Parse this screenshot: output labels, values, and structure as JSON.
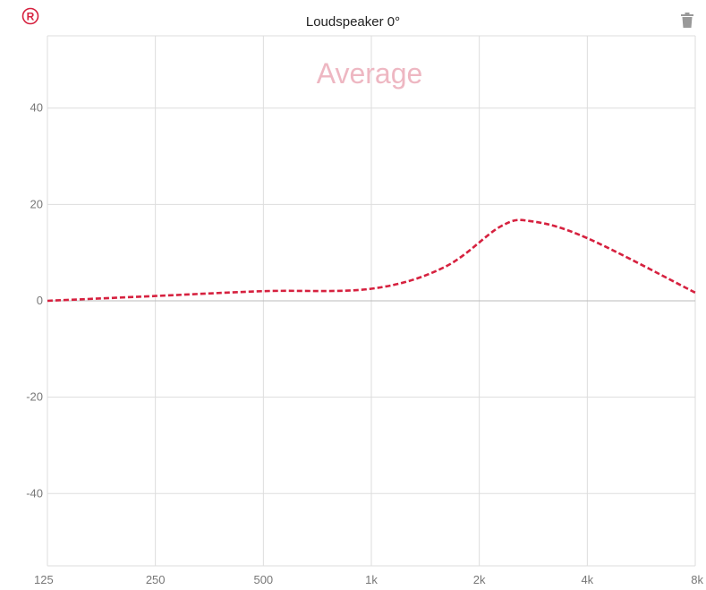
{
  "header": {
    "title": "Loudspeaker 0°",
    "left_icon": "registered-icon",
    "right_icon": "trash-icon",
    "accent_color": "#d6213f"
  },
  "chart_data": {
    "type": "line",
    "title": "Loudspeaker 0°",
    "watermark": "Average",
    "x_scale": "log",
    "x_ticks": [
      {
        "value": 125,
        "label": "125"
      },
      {
        "value": 250,
        "label": "250"
      },
      {
        "value": 500,
        "label": "500"
      },
      {
        "value": 1000,
        "label": "1k"
      },
      {
        "value": 2000,
        "label": "2k"
      },
      {
        "value": 4000,
        "label": "4k"
      },
      {
        "value": 8000,
        "label": "8k"
      }
    ],
    "y_ticks": [
      40,
      20,
      0,
      -20,
      -40
    ],
    "xlim": [
      125,
      8000
    ],
    "ylim": [
      -55,
      55
    ],
    "grid": true,
    "series": [
      {
        "style": "dashed",
        "color": "#d6213f",
        "points": [
          {
            "x": 125,
            "y": 0
          },
          {
            "x": 250,
            "y": 1
          },
          {
            "x": 500,
            "y": 2
          },
          {
            "x": 1000,
            "y": 2.5
          },
          {
            "x": 1600,
            "y": 7
          },
          {
            "x": 2300,
            "y": 15.5
          },
          {
            "x": 2800,
            "y": 16.5
          },
          {
            "x": 4000,
            "y": 13
          },
          {
            "x": 8000,
            "y": 1.7
          }
        ]
      }
    ]
  }
}
